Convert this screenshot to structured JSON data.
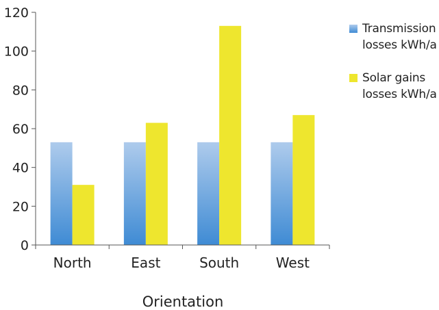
{
  "chart_data": {
    "type": "bar",
    "categories": [
      "North",
      "East",
      "South",
      "West"
    ],
    "series": [
      {
        "name": "Transmission losses kWh/a",
        "values": [
          53,
          53,
          53,
          53
        ],
        "color": "#4a90d6"
      },
      {
        "name": "Solar gains losses kWh/a",
        "values": [
          31,
          63,
          113,
          67
        ],
        "color": "#eee62e"
      }
    ],
    "title": "",
    "xlabel": "Orientation",
    "ylabel": "",
    "ylim": [
      0,
      120
    ],
    "yticks": [
      0,
      20,
      40,
      60,
      80,
      100,
      120
    ],
    "grid": false,
    "legend_position": "right"
  }
}
